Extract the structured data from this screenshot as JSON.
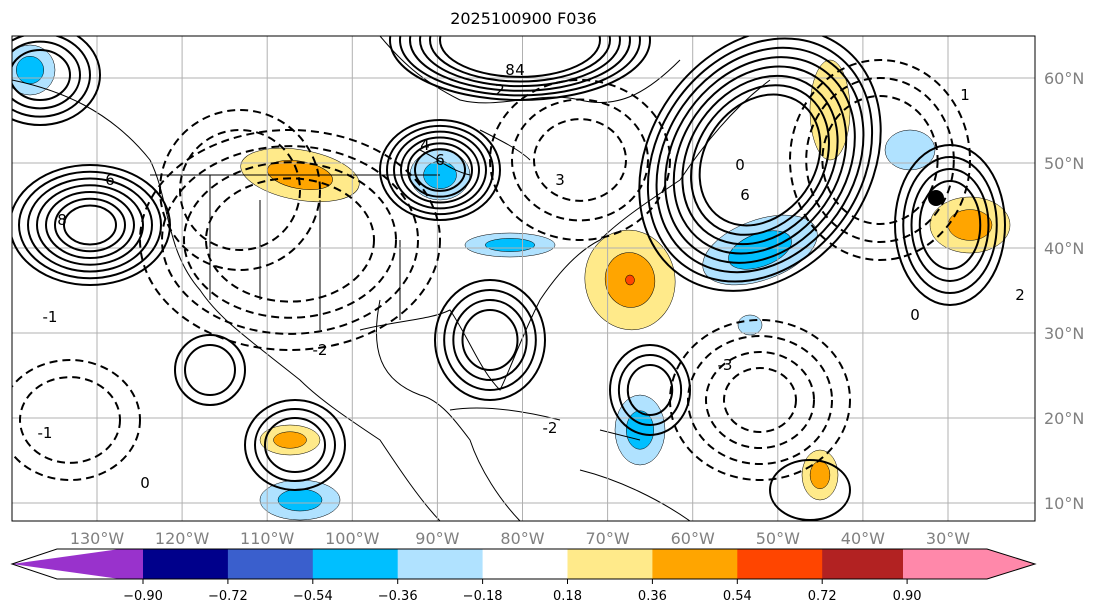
{
  "title": "2025100900 F036",
  "longitude_labels": [
    "130°W",
    "120°W",
    "110°W",
    "100°W",
    "90°W",
    "80°W",
    "70°W",
    "60°W",
    "50°W",
    "40°W",
    "30°W"
  ],
  "latitude_labels": [
    "60°N",
    "50°N",
    "40°N",
    "30°N",
    "20°N",
    "10°N"
  ],
  "colorbar": {
    "ticks": [
      "−0.90",
      "−0.72",
      "−0.54",
      "−0.36",
      "−0.18",
      "0.18",
      "0.36",
      "0.54",
      "0.72",
      "0.90"
    ],
    "colors": [
      "#9932cc",
      "#00008b",
      "#3a5fcd",
      "#00bfff",
      "#b0e2ff",
      "#ffffff",
      "#ffea8a",
      "#ffa500",
      "#ff4500",
      "#b22222",
      "#ff88aa"
    ]
  },
  "contour_labels": [
    "8",
    "6",
    "6",
    "4",
    "2",
    "0",
    "0",
    "0",
    "-1",
    "-1",
    "-2",
    "-2",
    "3",
    "-3",
    "1",
    "2",
    "4",
    "8",
    "6"
  ],
  "marker": "black-dot"
}
